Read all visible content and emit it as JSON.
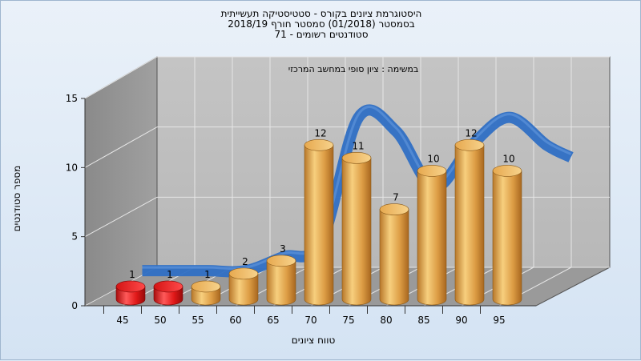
{
  "chart_data": {
    "type": "bar",
    "title_lines": [
      "היסטוגרמת ציונים בקורס - סטטיסטיקה תעשייתית",
      "בסמסטר  (01/2018)  סמסטר חורף  2018/19",
      "סטודנטים רשומים - 71"
    ],
    "subtitle": "במשימה : ציון סופי במחשב המרכזי",
    "xlabel": "טווח ציונים",
    "ylabel": "מספר סטודנטים",
    "ylim": [
      0,
      15
    ],
    "y_ticks": [
      0,
      5,
      10,
      15
    ],
    "categories": [
      "45",
      "50",
      "55",
      "60",
      "65",
      "70",
      "75",
      "80",
      "85",
      "90",
      "95"
    ],
    "values": [
      1,
      1,
      1,
      2,
      3,
      12,
      11,
      7,
      10,
      12,
      10
    ],
    "bar_colors": [
      "#e01818",
      "#e01818",
      "#d9973a",
      "#d9973a",
      "#d9973a",
      "#d9973a",
      "#d9973a",
      "#d9973a",
      "#d9973a",
      "#d9973a",
      "#d9973a"
    ],
    "curve_color": "#2f6fc4",
    "grid": true
  }
}
